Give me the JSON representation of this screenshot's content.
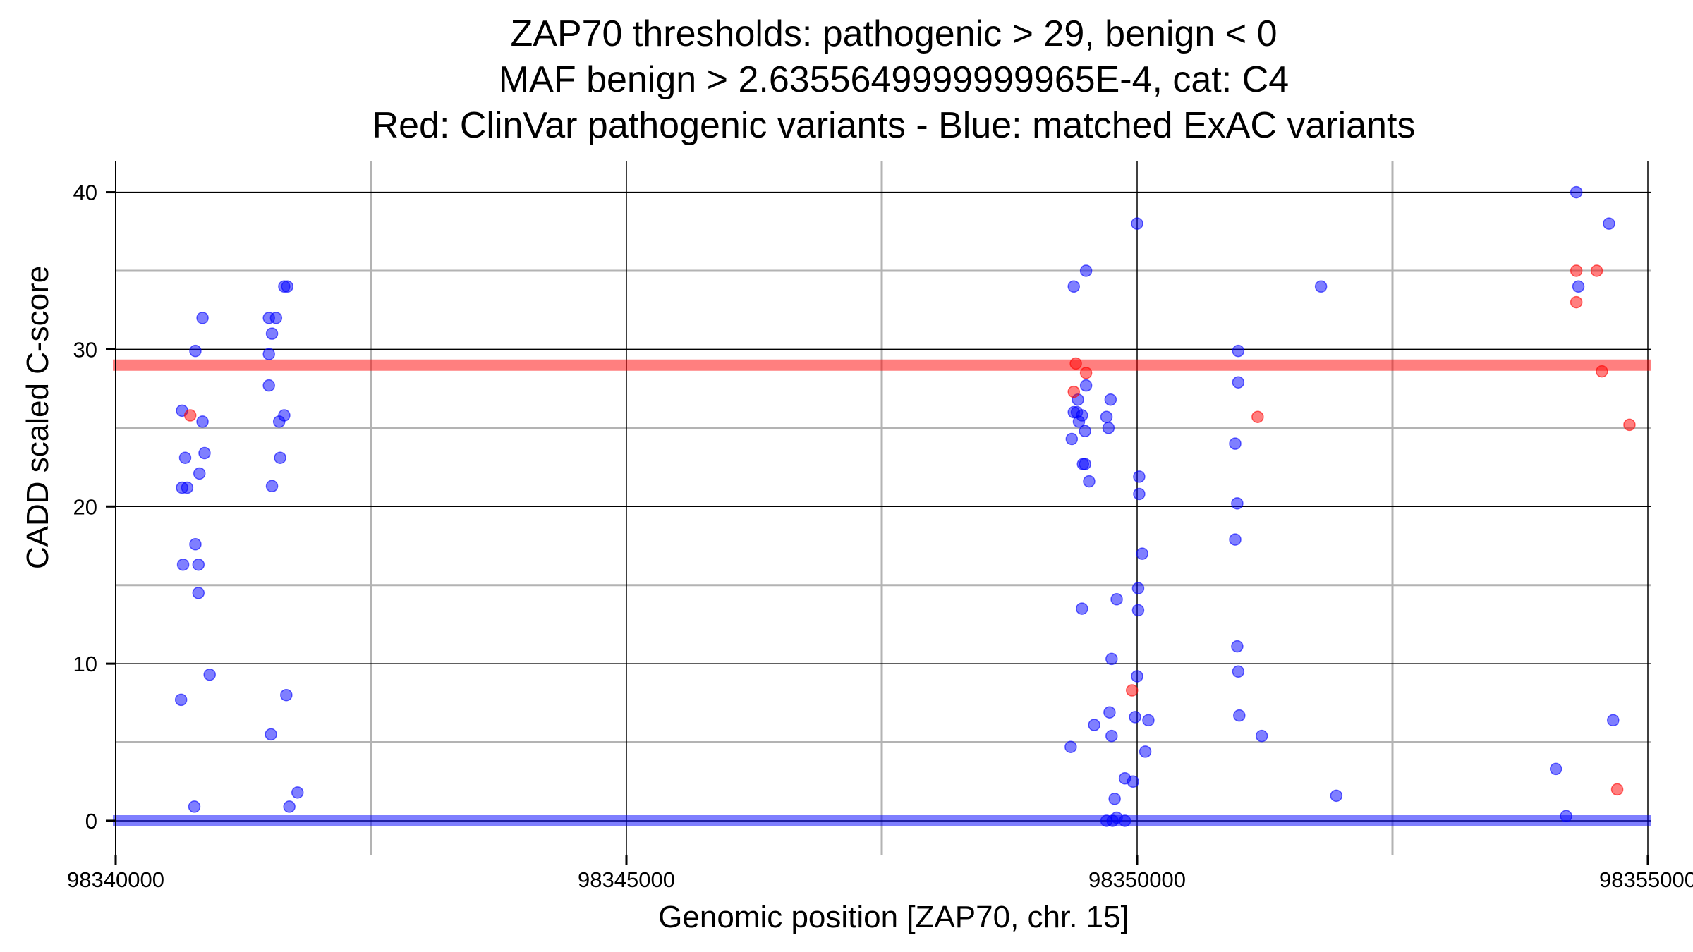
{
  "chart_data": {
    "type": "scatter",
    "title_lines": [
      "ZAP70 thresholds: pathogenic > 29, benign < 0",
      "MAF benign > 2.6355649999999965E-4, cat: C4",
      "Red: ClinVar pathogenic variants - Blue: matched ExAC variants"
    ],
    "xlabel": "Genomic position [ZAP70, chr. 15]",
    "ylabel": "CADD scaled C-score",
    "xlim": [
      98340000,
      98355000
    ],
    "ylim": [
      -2.2,
      42
    ],
    "x_ticks": [
      98340000,
      98345000,
      98350000,
      98355000
    ],
    "x_tick_labels": [
      "98340000",
      "98345000",
      "98350000",
      "98355000"
    ],
    "y_ticks": [
      0,
      10,
      20,
      30,
      40
    ],
    "y_tick_labels": [
      "0",
      "10",
      "20",
      "30",
      "40"
    ],
    "grid": true,
    "thresholds": [
      {
        "value": 29,
        "color": "#ff0000"
      },
      {
        "value": 0,
        "color": "#0000ff"
      }
    ],
    "colors": {
      "pathogenic": "#ff0000",
      "benign": "#0000ff"
    },
    "series": [
      {
        "key": "pathogenic",
        "points": [
          [
            98340730,
            25.8
          ],
          [
            98349400,
            29.1
          ],
          [
            98349380,
            27.3
          ],
          [
            98349500,
            28.5
          ],
          [
            98349950,
            8.3
          ],
          [
            98351180,
            25.7
          ],
          [
            98354300,
            35.0
          ],
          [
            98354300,
            33.0
          ],
          [
            98354500,
            35.0
          ],
          [
            98354550,
            28.6
          ],
          [
            98354820,
            25.2
          ],
          [
            98354700,
            2.0
          ]
        ]
      },
      {
        "key": "benign",
        "points": [
          [
            98340650,
            26.1
          ],
          [
            98340680,
            23.1
          ],
          [
            98340650,
            21.2
          ],
          [
            98340700,
            21.2
          ],
          [
            98340850,
            32.0
          ],
          [
            98340780,
            29.9
          ],
          [
            98340850,
            25.4
          ],
          [
            98340870,
            23.4
          ],
          [
            98340820,
            22.1
          ],
          [
            98340780,
            17.6
          ],
          [
            98340660,
            16.3
          ],
          [
            98340810,
            16.3
          ],
          [
            98340810,
            14.5
          ],
          [
            98340920,
            9.3
          ],
          [
            98340640,
            7.7
          ],
          [
            98340770,
            0.9
          ],
          [
            98341500,
            32.0
          ],
          [
            98341570,
            32.0
          ],
          [
            98341680,
            34.0
          ],
          [
            98341650,
            34.0
          ],
          [
            98341530,
            31.0
          ],
          [
            98341500,
            29.7
          ],
          [
            98341500,
            27.7
          ],
          [
            98341650,
            25.8
          ],
          [
            98341600,
            25.4
          ],
          [
            98341610,
            23.1
          ],
          [
            98341530,
            21.3
          ],
          [
            98341670,
            8.0
          ],
          [
            98341520,
            5.5
          ],
          [
            98341700,
            0.9
          ],
          [
            98341780,
            1.8
          ],
          [
            98349500,
            35.0
          ],
          [
            98349380,
            34.0
          ],
          [
            98349420,
            26.8
          ],
          [
            98349380,
            26.0
          ],
          [
            98349460,
            25.8
          ],
          [
            98349430,
            25.4
          ],
          [
            98349490,
            24.8
          ],
          [
            98349360,
            24.3
          ],
          [
            98349700,
            25.7
          ],
          [
            98349720,
            25.0
          ],
          [
            98349740,
            26.8
          ],
          [
            98349470,
            22.7
          ],
          [
            98349490,
            22.7
          ],
          [
            98349530,
            21.6
          ],
          [
            98349500,
            27.7
          ],
          [
            98349410,
            26.0
          ],
          [
            98349460,
            13.5
          ],
          [
            98349800,
            14.1
          ],
          [
            98349750,
            10.3
          ],
          [
            98349580,
            6.1
          ],
          [
            98349730,
            6.9
          ],
          [
            98349750,
            5.4
          ],
          [
            98349350,
            4.7
          ],
          [
            98349780,
            1.4
          ],
          [
            98349880,
            2.7
          ],
          [
            98349960,
            2.5
          ],
          [
            98349800,
            0.2
          ],
          [
            98349700,
            0.0
          ],
          [
            98349760,
            0.0
          ],
          [
            98349880,
            0.0
          ],
          [
            98350000,
            38.0
          ],
          [
            98350020,
            21.9
          ],
          [
            98350020,
            20.8
          ],
          [
            98350050,
            17.0
          ],
          [
            98350010,
            14.8
          ],
          [
            98350010,
            13.4
          ],
          [
            98350000,
            9.2
          ],
          [
            98349980,
            6.6
          ],
          [
            98350110,
            6.4
          ],
          [
            98350080,
            4.4
          ],
          [
            98350990,
            29.9
          ],
          [
            98350990,
            27.9
          ],
          [
            98350960,
            24.0
          ],
          [
            98350980,
            20.2
          ],
          [
            98350960,
            17.9
          ],
          [
            98350980,
            11.1
          ],
          [
            98350990,
            9.5
          ],
          [
            98351000,
            6.7
          ],
          [
            98351220,
            5.4
          ],
          [
            98351800,
            34.0
          ],
          [
            98351950,
            1.6
          ],
          [
            98354300,
            40.0
          ],
          [
            98354620,
            38.0
          ],
          [
            98354320,
            34.0
          ],
          [
            98354660,
            6.4
          ],
          [
            98354100,
            3.3
          ],
          [
            98354200,
            0.3
          ]
        ]
      }
    ]
  }
}
